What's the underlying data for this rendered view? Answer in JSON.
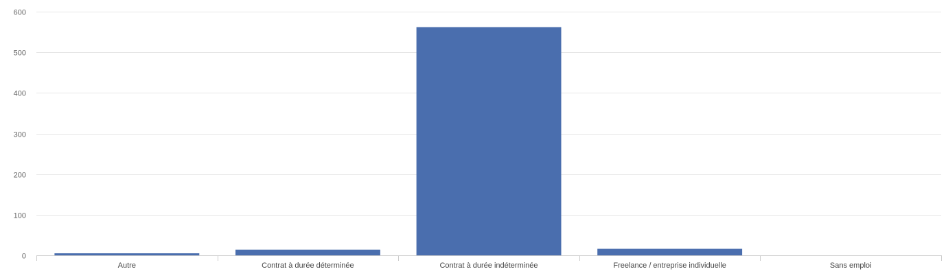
{
  "chart_data": {
    "type": "bar",
    "categories": [
      "Autre",
      "Contrat à durée déterminée",
      "Contrat à durée indéterminée",
      "Freelance / entreprise individuelle",
      "Sans emploi"
    ],
    "values": [
      5,
      14,
      562,
      16,
      0
    ],
    "title": "",
    "xlabel": "",
    "ylabel": "",
    "ylim": [
      0,
      600
    ],
    "yticks": [
      0,
      100,
      200,
      300,
      400,
      500,
      600
    ],
    "grid": true,
    "legend": "none",
    "bar_color": "#4a6eae",
    "grid_color": "#e6e6e6",
    "axis_color": "#cccccc"
  }
}
